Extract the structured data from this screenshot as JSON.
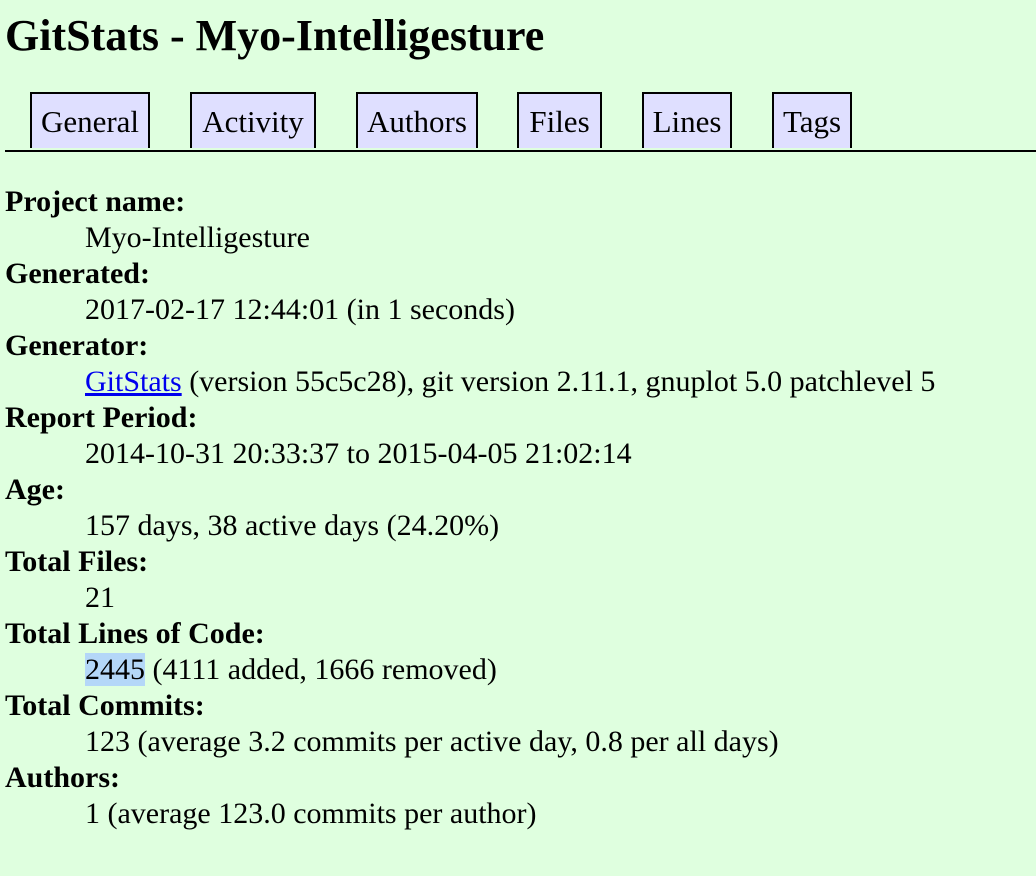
{
  "page": {
    "title": "GitStats - Myo-Intelligesture"
  },
  "nav": {
    "tabs": [
      {
        "label": "General"
      },
      {
        "label": "Activity"
      },
      {
        "label": "Authors"
      },
      {
        "label": "Files"
      },
      {
        "label": "Lines"
      },
      {
        "label": "Tags"
      }
    ]
  },
  "info": {
    "project_name": {
      "label": "Project name:",
      "value": "Myo-Intelligesture"
    },
    "generated": {
      "label": "Generated:",
      "value": "2017-02-17 12:44:01 (in 1 seconds)"
    },
    "generator": {
      "label": "Generator:",
      "link_text": "GitStats",
      "value": " (version 55c5c28), git version 2.11.1, gnuplot 5.0 patchlevel 5"
    },
    "report_period": {
      "label": "Report Period:",
      "value": "2014-10-31 20:33:37 to 2015-04-05 21:02:14"
    },
    "age": {
      "label": "Age:",
      "value": "157 days, 38 active days (24.20%)"
    },
    "total_files": {
      "label": "Total Files:",
      "value": "21"
    },
    "total_lines": {
      "label": "Total Lines of Code:",
      "highlighted": "2445",
      "value": " (4111 added, 1666 removed)"
    },
    "total_commits": {
      "label": "Total Commits:",
      "value": "123 (average 3.2 commits per active day, 0.8 per all days)"
    },
    "authors": {
      "label": "Authors:",
      "value": "1 (average 123.0 commits per author)"
    }
  },
  "colors": {
    "background": "#dfffdf",
    "tab_background": "#dfdfff",
    "link": "#0000ee",
    "selection": "#b4d7f8"
  }
}
